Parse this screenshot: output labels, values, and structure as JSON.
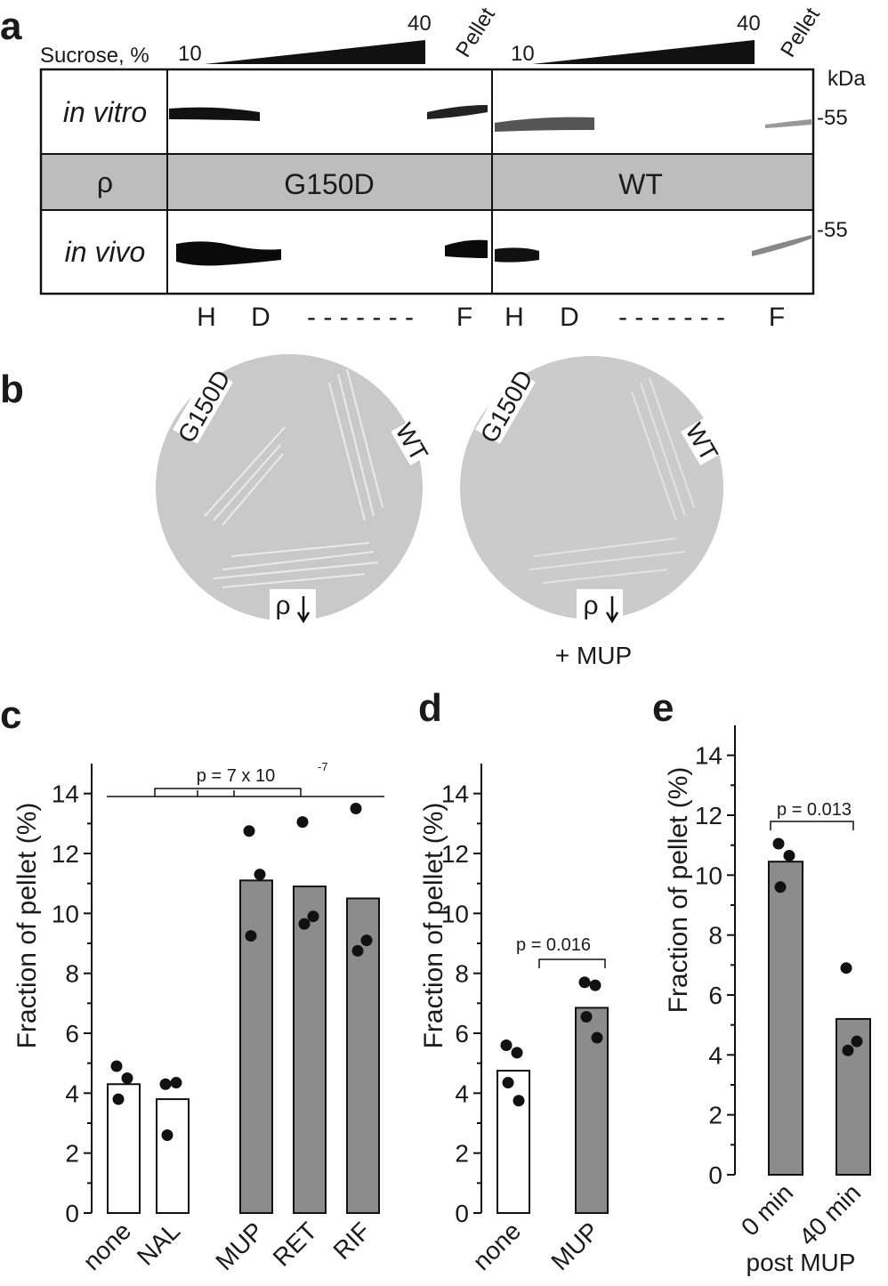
{
  "panel_labels": [
    "a",
    "b",
    "c",
    "d",
    "e"
  ],
  "blot": {
    "sucrose_label": "Sucrose, %",
    "left_low": "10",
    "left_high": "40",
    "left_pellet": "Pellet",
    "right_low": "10",
    "right_high": "40",
    "right_pellet": "Pellet",
    "kda": "kDa",
    "marker_top": "-55",
    "marker_bottom": "-55",
    "row_top": "in vitro",
    "row_middle": "ρ",
    "mutant": "G150D",
    "wildtype": "WT",
    "row_bottom": "in vivo",
    "fractions": [
      "H",
      "D",
      "- - - - - - -",
      "F",
      "H",
      "D",
      "- - - - - - -",
      "F"
    ]
  },
  "plates": {
    "left_g150d": "G150D",
    "left_wt": "WT",
    "left_rho": "ρ",
    "right_g150d": "G150D",
    "right_wt": "WT",
    "right_rho": "ρ",
    "right_note": "+ MUP"
  },
  "chart_data": [
    {
      "type": "bar",
      "y_label": "Fraction of pellet (%)",
      "categories": [
        "none",
        "NAL",
        "MUP",
        "RET",
        "RIF"
      ],
      "values": [
        4.3,
        3.8,
        11.1,
        10.9,
        10.5
      ],
      "colors": [
        "#ffffff",
        "#ffffff",
        "#8c8c8c",
        "#8c8c8c",
        "#8c8c8c"
      ],
      "points": [
        [
          4.9,
          4.5,
          3.8
        ],
        [
          4.3,
          4.35,
          2.6
        ],
        [
          12.75,
          11.3,
          9.25
        ],
        [
          13.05,
          9.9,
          9.65
        ],
        [
          13.5,
          9.1,
          8.75
        ]
      ],
      "annotation": "p = 7 x 10",
      "annotation_exponent": "-7",
      "ylim": [
        0,
        15
      ],
      "yticks": [
        0,
        2,
        4,
        6,
        8,
        10,
        12,
        14
      ],
      "minor_yticks": [
        1,
        3,
        5,
        7,
        9,
        11,
        13
      ]
    },
    {
      "type": "bar",
      "y_label": "Fraction of pellet (%)",
      "categories": [
        "none",
        "MUP"
      ],
      "values": [
        4.75,
        6.85
      ],
      "colors": [
        "#ffffff",
        "#8c8c8c"
      ],
      "points": [
        [
          5.6,
          5.35,
          4.35,
          3.75
        ],
        [
          7.7,
          7.6,
          6.55,
          5.85
        ]
      ],
      "annotation": "p = 0.016",
      "ylim": [
        0,
        15
      ],
      "yticks": [
        0,
        2,
        4,
        6,
        8,
        10,
        12,
        14
      ],
      "minor_yticks": [
        1,
        3,
        5,
        7,
        9,
        11,
        13
      ]
    },
    {
      "type": "bar",
      "y_label": "Fraction of pellet (%)",
      "x_label": "post MUP",
      "categories": [
        "0 min",
        "40 min"
      ],
      "values": [
        10.45,
        5.2
      ],
      "colors": [
        "#8c8c8c",
        "#8c8c8c"
      ],
      "points": [
        [
          11.05,
          10.65,
          9.6
        ],
        [
          6.9,
          4.45,
          4.15
        ]
      ],
      "annotation": "p = 0.013",
      "ylim": [
        0,
        15
      ],
      "yticks": [
        0,
        2,
        4,
        6,
        8,
        10,
        12,
        14
      ],
      "minor_yticks": [
        1,
        3,
        5,
        7,
        9,
        11,
        13
      ]
    }
  ]
}
